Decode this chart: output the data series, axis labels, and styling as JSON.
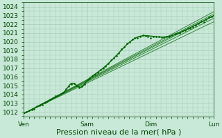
{
  "title": "",
  "xlabel": "Pression niveau de la mer( hPa )",
  "ylabel": "",
  "bg_color": "#c8e8d8",
  "grid_color": "#aaccbb",
  "plot_color_main": "#006600",
  "ylim": [
    1011.5,
    1024.5
  ],
  "xlim": [
    0,
    288
  ],
  "day_ticks": [
    0,
    96,
    192,
    288
  ],
  "day_labels": [
    "Ven",
    "Sam",
    "Dim",
    "Lun"
  ],
  "yticks": [
    1012,
    1013,
    1014,
    1015,
    1016,
    1017,
    1018,
    1019,
    1020,
    1021,
    1022,
    1023,
    1024
  ],
  "xlabel_fontsize": 8,
  "tick_fontsize": 6.5
}
